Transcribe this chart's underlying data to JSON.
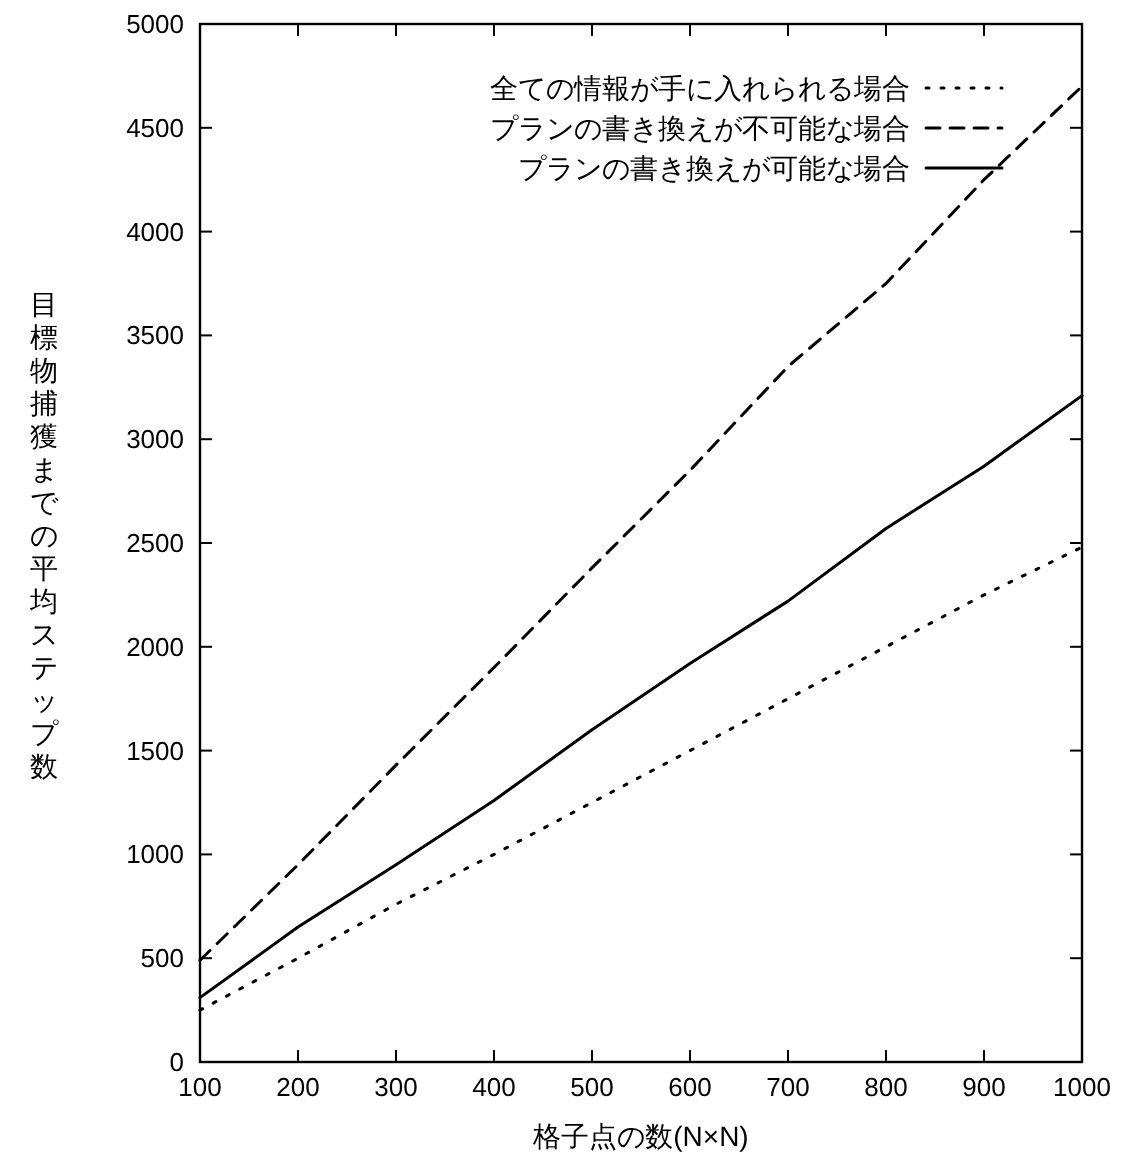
{
  "chart_data": {
    "type": "line",
    "xlabel": "格子点の数(N×N)",
    "ylabel": "目標物捕獲までの平均ステップ数",
    "x": [
      100,
      200,
      300,
      400,
      500,
      600,
      700,
      800,
      900,
      1000
    ],
    "series": [
      {
        "name": "全ての情報が手に入れられる場合",
        "color": "#000000",
        "line_style": "dotted",
        "values": [
          250,
          500,
          760,
          1000,
          1250,
          1500,
          1750,
          2000,
          2250,
          2480
        ]
      },
      {
        "name": "プランの書き換えが不可能な場合",
        "color": "#000000",
        "line_style": "dashed",
        "values": [
          490,
          950,
          1430,
          1900,
          2380,
          2850,
          3350,
          3750,
          4250,
          4700
        ]
      },
      {
        "name": "プランの書き換えが可能な場合",
        "color": "#000000",
        "line_style": "solid",
        "values": [
          310,
          650,
          950,
          1260,
          1600,
          1920,
          2220,
          2570,
          2870,
          3210
        ]
      }
    ],
    "xlim": [
      100,
      1000
    ],
    "xticks": [
      100,
      200,
      300,
      400,
      500,
      600,
      700,
      800,
      900,
      1000
    ],
    "ylim": [
      0,
      5000
    ],
    "yticks": [
      0,
      500,
      1000,
      1500,
      2000,
      2500,
      3000,
      3500,
      4000,
      4500,
      5000
    ],
    "legend": "top right",
    "grid": false,
    "marker": "none"
  }
}
